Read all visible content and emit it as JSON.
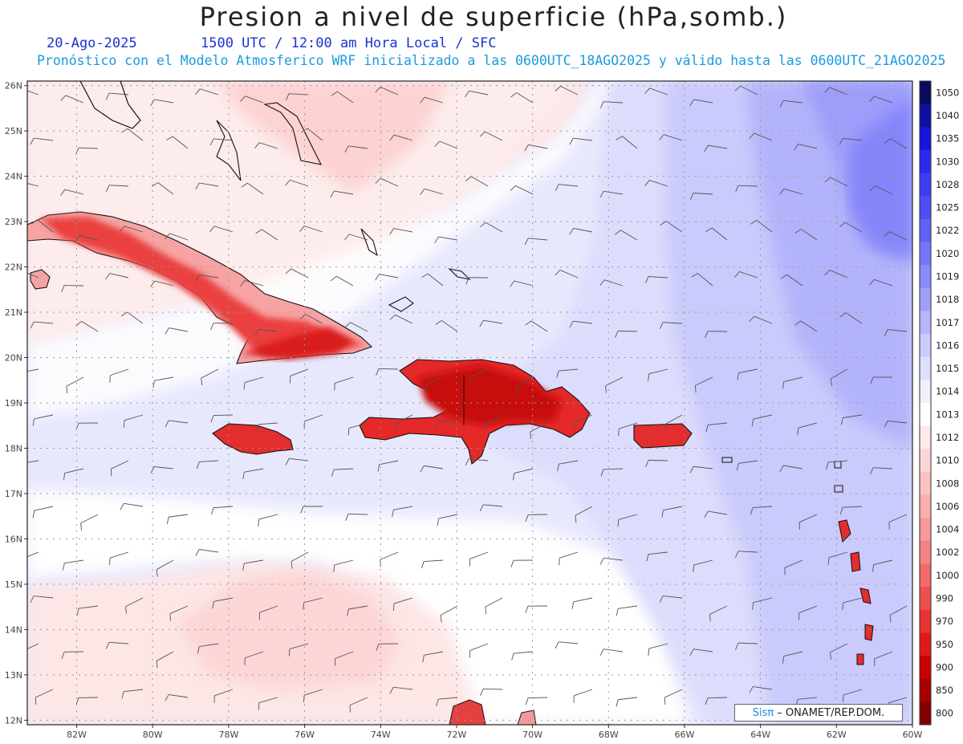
{
  "title": "Presion a nivel de superficie (hPa,somb.)",
  "date": "20-Ago-2025",
  "time_info": "1500 UTC / 12:00 am Hora Local / SFC",
  "model_info": "Pronóstico con el Modelo Atmosferico WRF inicializado a las 0600UTC_18AGO2025 y válido hasta las  0600UTC_21AGO2025",
  "map": {
    "lat_labels": [
      "26N",
      "25N",
      "24N",
      "23N",
      "22N",
      "21N",
      "20N",
      "19N",
      "18N",
      "17N",
      "16N",
      "15N",
      "14N",
      "13N",
      "12N"
    ],
    "lon_labels": [
      "82W",
      "80W",
      "78W",
      "76W",
      "74W",
      "72W",
      "70W",
      "68W",
      "66W",
      "64W",
      "62W",
      "60W"
    ]
  },
  "colorbar": {
    "levels": [
      "1050",
      "1040",
      "1035",
      "1030",
      "1028",
      "1025",
      "1022",
      "1020",
      "1019",
      "1018",
      "1017",
      "1016",
      "1015",
      "1014",
      "1013",
      "1012",
      "1010",
      "1008",
      "1006",
      "1004",
      "1002",
      "1000",
      "990",
      "970",
      "950",
      "900",
      "850",
      "800"
    ],
    "colors": [
      "#0a0a5c",
      "#1010a0",
      "#1515dd",
      "#2a2af0",
      "#3c3cf5",
      "#4e4ef7",
      "#6161f8",
      "#7575f9",
      "#8a8afa",
      "#a0a0fb",
      "#b6b6fc",
      "#cacafc",
      "#dedefd",
      "#efeffe",
      "#ffffff",
      "#fdeaea",
      "#fcd6d6",
      "#fbc2c2",
      "#f9aeae",
      "#f79a9a",
      "#f58282",
      "#f26a6a",
      "#ee5050",
      "#e83434",
      "#e01818",
      "#cc0000",
      "#a80000",
      "#840000"
    ]
  },
  "credit": {
    "brand": "Sisπ",
    "text": "– ONAMET/REP.DOM."
  }
}
